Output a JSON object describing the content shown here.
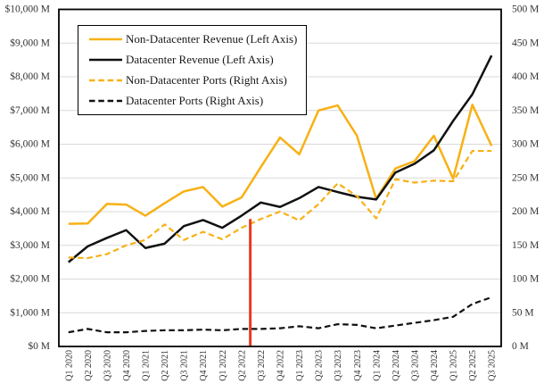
{
  "chart_data": {
    "type": "line",
    "title": "",
    "xlabel": "",
    "ylabel": "",
    "categories": [
      "Q1 2020",
      "Q2 2020",
      "Q3 2020",
      "Q4 2020",
      "Q1 2021",
      "Q2 2021",
      "Q3 2021",
      "Q4 2021",
      "Q1 2022",
      "Q2 2022",
      "Q3 2022",
      "Q4 2022",
      "Q1 2023",
      "Q2 2023",
      "Q3 2023",
      "Q4 2023",
      "Q1 2024",
      "Q2 2024",
      "Q3 2024",
      "Q4 2024",
      "Q1 2025",
      "Q2 2025",
      "Q3 2025"
    ],
    "series": [
      {
        "name": "Non-Datacenter Revenue (Left Axis)",
        "axis": "left",
        "color": "#F7B114",
        "dash": "solid",
        "values": [
          3640,
          3650,
          4230,
          4210,
          3880,
          4250,
          4600,
          4730,
          4150,
          4420,
          5320,
          6200,
          5700,
          7000,
          7150,
          6250,
          4380,
          5280,
          5500,
          6250,
          4980,
          7170,
          5950
        ]
      },
      {
        "name": "Datacenter Revenue (Left Axis)",
        "axis": "left",
        "color": "#111111",
        "dash": "solid",
        "values": [
          2500,
          2970,
          3220,
          3450,
          2920,
          3050,
          3570,
          3750,
          3520,
          3880,
          4270,
          4140,
          4400,
          4730,
          4580,
          4440,
          4360,
          5160,
          5420,
          5820,
          6690,
          7480,
          8630
        ]
      },
      {
        "name": "Non-Datacenter Ports (Right Axis)",
        "axis": "right",
        "color": "#F7B114",
        "dash": "dashed",
        "values": [
          132,
          131,
          137,
          150,
          158,
          181,
          158,
          170,
          159,
          176,
          189,
          200,
          187,
          211,
          242,
          223,
          190,
          248,
          243,
          246,
          245,
          290,
          290
        ]
      },
      {
        "name": "Datacenter Ports (Right Axis)",
        "axis": "right",
        "color": "#111111",
        "dash": "dashed",
        "values": [
          21,
          26,
          21,
          21,
          23,
          24,
          24,
          25,
          24,
          26,
          26,
          27,
          30,
          27,
          33,
          32,
          27,
          31,
          35,
          39,
          44,
          63,
          73
        ]
      }
    ],
    "left_axis": {
      "min": 0,
      "max": 10000,
      "tick_interval": 1000,
      "labels": [
        "$0 M",
        "$1,000 M",
        "$2,000 M",
        "$3,000 M",
        "$4,000 M",
        "$5,000 M",
        "$6,000 M",
        "$7,000 M",
        "$8,000 M",
        "$9,000 M",
        "$10,000 M"
      ]
    },
    "right_axis": {
      "min": 0,
      "max": 500,
      "tick_interval": 50,
      "labels": [
        "0 M",
        "50 M",
        "100 M",
        "150 M",
        "200 M",
        "250 M",
        "300 M",
        "350 M",
        "400 M",
        "450 M",
        "500 M"
      ]
    },
    "event_line": {
      "position_between": [
        "Q2 2022",
        "Q3 2022"
      ],
      "top_value_left_axis": 3780,
      "bottom_value_left_axis": 0,
      "color": "#E8391F"
    },
    "grid": "horizontal",
    "legend_position": "top-left-inside",
    "plot_border_color": "#000000",
    "gridline_color": "#D9D9D9",
    "tick_label_color": "#333333",
    "background_color": "#FFFFFF"
  }
}
